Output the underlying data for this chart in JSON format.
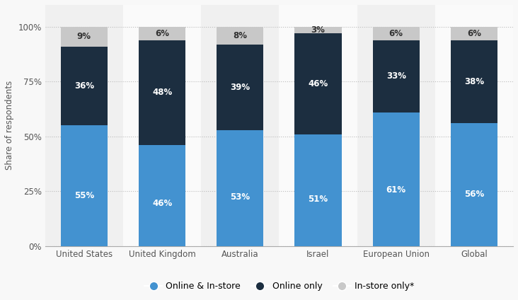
{
  "categories": [
    "United States",
    "United Kingdom",
    "Australia",
    "Israel",
    "European Union",
    "Global"
  ],
  "online_instore": [
    55,
    46,
    53,
    51,
    61,
    56
  ],
  "online_only": [
    36,
    48,
    39,
    46,
    33,
    38
  ],
  "instore_only": [
    9,
    6,
    8,
    3,
    6,
    6
  ],
  "color_online_instore": "#4392d0",
  "color_online_only": "#1c2e40",
  "color_instore_only": "#c8c8c8",
  "ylabel": "Share of respondents",
  "yticks": [
    0,
    25,
    50,
    75,
    100
  ],
  "ytick_labels": [
    "0%",
    "25%",
    "50%",
    "75%",
    "100%"
  ],
  "legend_labels": [
    "Online & In-store",
    "Online only",
    "In-store only*"
  ],
  "bar_width": 0.6,
  "label_fontsize": 8.5,
  "tick_fontsize": 8.5,
  "legend_fontsize": 9,
  "ylabel_fontsize": 8.5,
  "background_color": "#f8f8f8",
  "plot_background_color": "#ffffff",
  "col_bg_even": "#f0f0f0",
  "col_bg_odd": "#fafafa"
}
